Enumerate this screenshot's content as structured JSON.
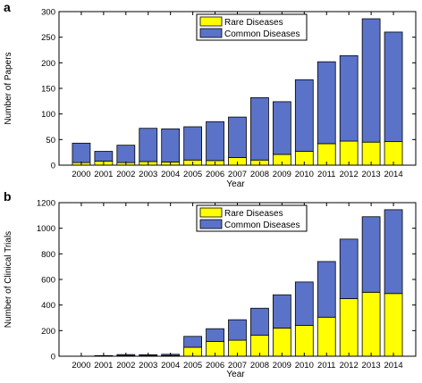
{
  "colors": {
    "rare": "#ffff00",
    "common": "#5a72c8",
    "edge": "#000000"
  },
  "chart_data": [
    {
      "panel": "a",
      "type": "bar",
      "stacked": true,
      "xlabel": "Year",
      "ylabel": "Number of Papers",
      "ylim": [
        0,
        300
      ],
      "yticks": [
        0,
        50,
        100,
        150,
        200,
        250,
        300
      ],
      "grid": false,
      "legend": "top-center",
      "categories": [
        "2000",
        "2001",
        "2002",
        "2003",
        "2004",
        "2005",
        "2006",
        "2007",
        "2008",
        "2009",
        "2010",
        "2011",
        "2012",
        "2013",
        "2014"
      ],
      "series": [
        {
          "name": "Rare Diseases",
          "values": [
            5,
            8,
            5,
            7,
            6,
            10,
            9,
            15,
            10,
            21,
            27,
            42,
            47,
            45,
            46
          ]
        },
        {
          "name": "Common Diseases",
          "values": [
            38,
            19,
            34,
            65,
            65,
            65,
            76,
            79,
            122,
            103,
            140,
            160,
            167,
            241,
            214
          ]
        }
      ]
    },
    {
      "panel": "b",
      "type": "bar",
      "stacked": true,
      "xlabel": "Year",
      "ylabel": "Number of Clinical Trials",
      "ylim": [
        0,
        1200
      ],
      "yticks": [
        0,
        200,
        400,
        600,
        800,
        1000,
        1200
      ],
      "grid": false,
      "legend": "top-center",
      "categories": [
        "2000",
        "2001",
        "2002",
        "2003",
        "2004",
        "2005",
        "2006",
        "2007",
        "2008",
        "2009",
        "2010",
        "2011",
        "2012",
        "2013",
        "2014"
      ],
      "series": [
        {
          "name": "Rare Diseases",
          "values": [
            0,
            2,
            5,
            5,
            5,
            70,
            115,
            125,
            165,
            220,
            240,
            305,
            450,
            500,
            490
          ]
        },
        {
          "name": "Common Diseases",
          "values": [
            0,
            3,
            8,
            7,
            10,
            85,
            100,
            160,
            210,
            260,
            340,
            435,
            465,
            590,
            655
          ]
        }
      ]
    }
  ]
}
